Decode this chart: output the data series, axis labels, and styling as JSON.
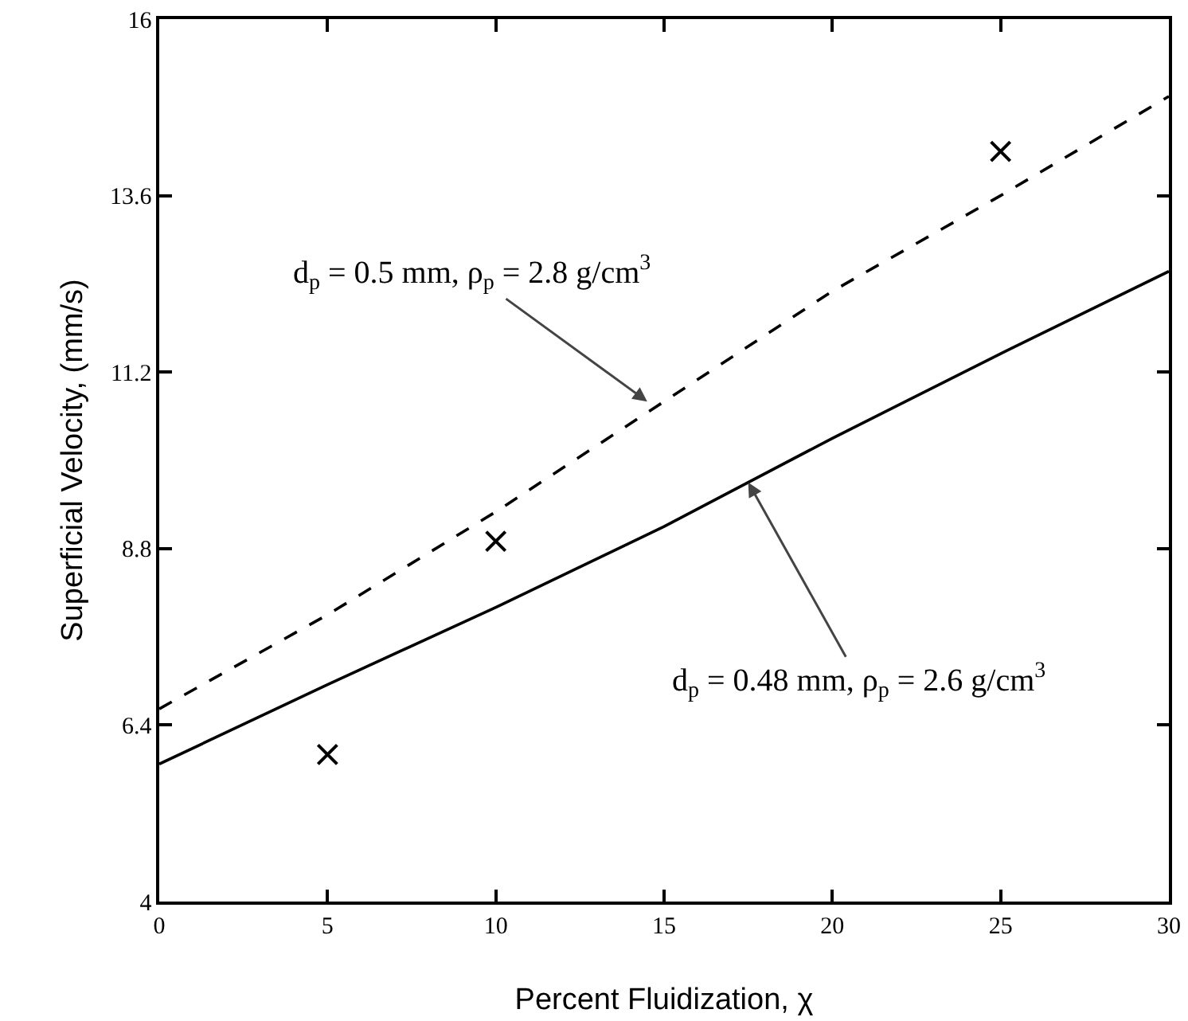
{
  "chart_data": {
    "type": "line",
    "xlabel": "Percent Fluidization, χ",
    "ylabel": "Superficial Velocity, (mm/s)",
    "x": [
      0,
      5,
      10,
      15,
      20,
      25,
      30
    ],
    "series": [
      {
        "color": "#000000",
        "line_style": "dashed",
        "values": [
          6.62,
          7.9,
          9.3,
          10.8,
          12.3,
          13.6,
          14.95
        ]
      },
      {
        "color": "#000000",
        "line_style": "solid",
        "values": [
          5.87,
          6.95,
          8.0,
          9.1,
          10.3,
          11.45,
          12.57
        ]
      },
      {
        "type": "scatter",
        "marker": "cross",
        "color": "#000000",
        "x": [
          5,
          10,
          25
        ],
        "values": [
          6.0,
          8.9,
          14.2
        ]
      }
    ],
    "xlim": [
      0,
      30
    ],
    "xticks": [
      0,
      5,
      10,
      15,
      20,
      25,
      30
    ],
    "ylim": [
      4,
      16
    ],
    "yticks": [
      4,
      6.4,
      8.8,
      11.2,
      13.6,
      16
    ],
    "grid": false,
    "annotations": [
      {
        "text": "d$_{p}$ = 0.5 mm, ρ$_{p}$ = 2.8 g/cm$^{3}$",
        "x": 14.5,
        "y": 10.8
      },
      {
        "text": "d$_{p}$ = 0.48 mm, ρ$_{p}$ = 2.6 g/cm$^{3}$",
        "x": 17.5,
        "y": 9.7
      }
    ]
  }
}
